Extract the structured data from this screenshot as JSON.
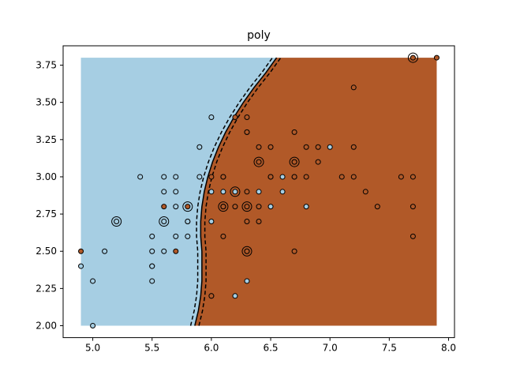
{
  "chart_data": {
    "type": "scatter",
    "title": "poly",
    "xlabel": "",
    "ylabel": "",
    "xlim": [
      4.75,
      8.05
    ],
    "ylim": [
      1.92,
      3.88
    ],
    "x_ticks": [
      "5.0",
      "5.5",
      "6.0",
      "6.5",
      "7.0",
      "7.5",
      "8.0"
    ],
    "x_tick_values": [
      5.0,
      5.5,
      6.0,
      6.5,
      7.0,
      7.5,
      8.0
    ],
    "y_ticks": [
      "2.00",
      "2.25",
      "2.50",
      "2.75",
      "3.00",
      "3.25",
      "3.50",
      "3.75"
    ],
    "y_tick_values": [
      2.0,
      2.25,
      2.5,
      2.75,
      3.0,
      3.25,
      3.5,
      3.75
    ],
    "grid": false,
    "legend": "none",
    "colors": {
      "class_blue": "#a6cee3",
      "class_brown": "#b15928",
      "edge": "#000000"
    },
    "decision_region": {
      "x_range": [
        4.9,
        7.9
      ],
      "y_range": [
        2.0,
        3.8
      ],
      "boundary_x_at_y": [
        [
          2.0,
          5.86
        ],
        [
          2.1,
          5.89
        ],
        [
          2.2,
          5.91
        ],
        [
          2.3,
          5.92
        ],
        [
          2.4,
          5.92
        ],
        [
          2.5,
          5.92
        ],
        [
          2.6,
          5.91
        ],
        [
          2.7,
          5.91
        ],
        [
          2.8,
          5.92
        ],
        [
          2.9,
          5.94
        ],
        [
          3.0,
          5.97
        ],
        [
          3.1,
          6.01
        ],
        [
          3.2,
          6.06
        ],
        [
          3.3,
          6.12
        ],
        [
          3.4,
          6.19
        ],
        [
          3.5,
          6.27
        ],
        [
          3.6,
          6.36
        ],
        [
          3.7,
          6.46
        ],
        [
          3.8,
          6.55
        ]
      ],
      "margin_offset": 0.035
    },
    "series": [
      {
        "name": "",
        "color": "#a6cee3",
        "points": [
          [
            4.9,
            2.4
          ],
          [
            5.0,
            2.3
          ],
          [
            5.0,
            2.0
          ],
          [
            5.1,
            2.5
          ],
          [
            5.2,
            2.7
          ],
          [
            5.4,
            3.0
          ],
          [
            5.5,
            2.6
          ],
          [
            5.5,
            2.5
          ],
          [
            5.5,
            2.4
          ],
          [
            5.5,
            2.4
          ],
          [
            5.5,
            2.3
          ],
          [
            5.6,
            3.0
          ],
          [
            5.6,
            2.9
          ],
          [
            5.6,
            2.7
          ],
          [
            5.6,
            2.5
          ],
          [
            5.7,
            3.0
          ],
          [
            5.7,
            2.9
          ],
          [
            5.7,
            2.8
          ],
          [
            5.7,
            2.6
          ],
          [
            5.8,
            2.7
          ],
          [
            5.8,
            2.6
          ],
          [
            5.8,
            2.7
          ],
          [
            5.9,
            3.2
          ],
          [
            5.9,
            3.0
          ],
          [
            6.0,
            3.4
          ],
          [
            6.0,
            2.9
          ],
          [
            6.0,
            2.7
          ],
          [
            6.0,
            2.2
          ],
          [
            6.1,
            3.0
          ],
          [
            6.1,
            2.9
          ],
          [
            6.1,
            2.8
          ],
          [
            6.1,
            2.8
          ],
          [
            6.2,
            2.9
          ],
          [
            6.2,
            2.2
          ],
          [
            6.3,
            3.3
          ],
          [
            6.3,
            2.5
          ],
          [
            6.3,
            2.3
          ],
          [
            6.4,
            2.9
          ],
          [
            6.5,
            2.8
          ],
          [
            6.6,
            3.0
          ],
          [
            6.6,
            2.9
          ],
          [
            6.7,
            3.1
          ],
          [
            6.7,
            3.0
          ],
          [
            6.8,
            2.8
          ],
          [
            7.0,
            3.2
          ]
        ]
      },
      {
        "name": "",
        "color": "#b15928",
        "points": [
          [
            4.9,
            2.5
          ],
          [
            5.6,
            2.8
          ],
          [
            5.7,
            2.5
          ],
          [
            5.8,
            2.8
          ],
          [
            6.0,
            3.0
          ],
          [
            6.0,
            2.2
          ],
          [
            6.1,
            3.0
          ],
          [
            6.1,
            2.8
          ],
          [
            6.1,
            2.6
          ],
          [
            6.2,
            3.4
          ],
          [
            6.2,
            2.8
          ],
          [
            6.3,
            3.4
          ],
          [
            6.3,
            3.3
          ],
          [
            6.3,
            2.9
          ],
          [
            6.3,
            2.8
          ],
          [
            6.3,
            2.7
          ],
          [
            6.3,
            2.5
          ],
          [
            6.4,
            3.2
          ],
          [
            6.4,
            3.1
          ],
          [
            6.4,
            2.8
          ],
          [
            6.4,
            2.7
          ],
          [
            6.5,
            3.2
          ],
          [
            6.5,
            3.0
          ],
          [
            6.5,
            3.0
          ],
          [
            6.7,
            3.3
          ],
          [
            6.7,
            3.1
          ],
          [
            6.7,
            3.0
          ],
          [
            6.7,
            2.5
          ],
          [
            6.8,
            3.2
          ],
          [
            6.8,
            3.0
          ],
          [
            6.9,
            3.2
          ],
          [
            6.9,
            3.1
          ],
          [
            7.1,
            3.0
          ],
          [
            7.2,
            3.6
          ],
          [
            7.2,
            3.2
          ],
          [
            7.2,
            3.0
          ],
          [
            7.3,
            2.9
          ],
          [
            7.4,
            2.8
          ],
          [
            7.6,
            3.0
          ],
          [
            7.7,
            3.8
          ],
          [
            7.7,
            3.0
          ],
          [
            7.7,
            2.8
          ],
          [
            7.7,
            2.6
          ],
          [
            7.9,
            3.8
          ]
        ]
      }
    ],
    "support_vectors": [
      [
        5.2,
        2.7
      ],
      [
        5.6,
        2.7
      ],
      [
        5.8,
        2.8
      ],
      [
        6.1,
        2.8
      ],
      [
        6.2,
        2.9
      ],
      [
        6.3,
        2.8
      ],
      [
        6.3,
        2.5
      ],
      [
        6.4,
        3.1
      ],
      [
        6.7,
        3.1
      ],
      [
        7.7,
        3.8
      ]
    ]
  }
}
